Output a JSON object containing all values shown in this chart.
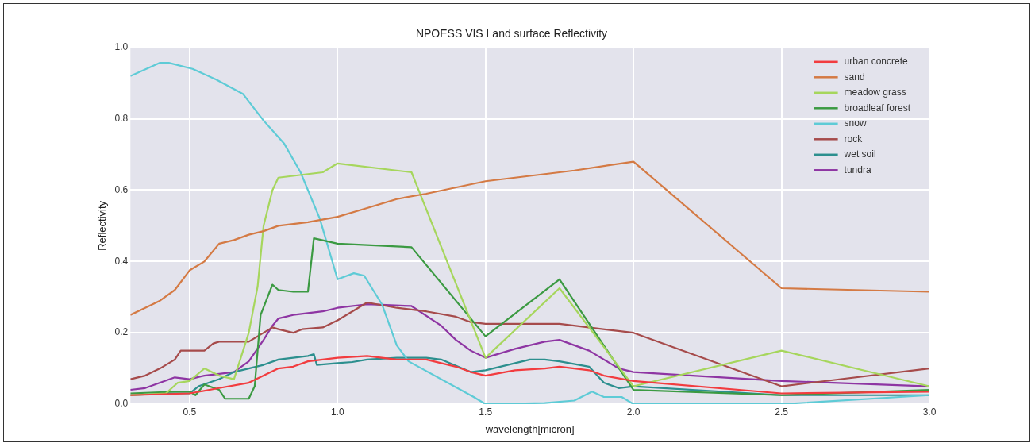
{
  "chart_data": {
    "type": "line",
    "title": "NPOESS VIS Land surface Reflectivity",
    "xlabel": "wavelength[micron]",
    "ylabel": "Reflectivity",
    "xlim": [
      0.3,
      3.0
    ],
    "xticks": [
      0.5,
      {
        "value": 1,
        "label": "1.0"
      },
      1.5,
      {
        "value": 2,
        "label": "2.0"
      },
      2.5,
      {
        "value": 3,
        "label": "3.0"
      }
    ],
    "ylim": [
      0,
      1
    ],
    "yticks": [
      {
        "value": 0,
        "label": "0.0"
      },
      0.2,
      0.4,
      0.6,
      0.8,
      {
        "value": 1,
        "label": "1.0"
      }
    ],
    "grid": true,
    "legend": "top right",
    "marker": "none",
    "line_style": "solid",
    "series": [
      {
        "name": "urban concrete",
        "color": "#f23c3f",
        "x": [
          0.3,
          0.5,
          0.6,
          0.7,
          0.75,
          0.8,
          0.85,
          0.9,
          0.95,
          1.0,
          1.1,
          1.2,
          1.3,
          1.4,
          1.45,
          1.5,
          1.6,
          1.7,
          1.75,
          1.85,
          1.9,
          2.0,
          2.5,
          3.0
        ],
        "values": [
          0.025,
          0.03,
          0.045,
          0.06,
          0.08,
          0.1,
          0.105,
          0.12,
          0.125,
          0.13,
          0.135,
          0.125,
          0.125,
          0.105,
          0.09,
          0.08,
          0.095,
          0.1,
          0.105,
          0.095,
          0.08,
          0.065,
          0.03,
          0.035
        ]
      },
      {
        "name": "sand",
        "color": "#d47a44",
        "x": [
          0.3,
          0.35,
          0.4,
          0.45,
          0.5,
          0.55,
          0.6,
          0.65,
          0.7,
          0.75,
          0.8,
          0.9,
          1.0,
          1.1,
          1.2,
          1.3,
          1.5,
          1.6,
          1.8,
          2.0,
          2.5,
          3.0
        ],
        "values": [
          0.25,
          0.27,
          0.29,
          0.32,
          0.375,
          0.4,
          0.45,
          0.46,
          0.475,
          0.485,
          0.5,
          0.51,
          0.525,
          0.55,
          0.575,
          0.59,
          0.625,
          0.635,
          0.655,
          0.68,
          0.325,
          0.315
        ]
      },
      {
        "name": "meadow grass",
        "color": "#a6d65c",
        "x": [
          0.3,
          0.42,
          0.46,
          0.5,
          0.55,
          0.6,
          0.65,
          0.7,
          0.73,
          0.75,
          0.78,
          0.8,
          0.85,
          0.95,
          1.0,
          1.25,
          1.5,
          1.75,
          2.0,
          2.5,
          3.0
        ],
        "values": [
          0.025,
          0.03,
          0.06,
          0.065,
          0.1,
          0.08,
          0.07,
          0.2,
          0.33,
          0.5,
          0.6,
          0.635,
          0.64,
          0.65,
          0.675,
          0.65,
          0.13,
          0.325,
          0.05,
          0.15,
          0.05
        ]
      },
      {
        "name": "broadleaf forest",
        "color": "#3b9a42",
        "x": [
          0.3,
          0.45,
          0.5,
          0.52,
          0.55,
          0.6,
          0.62,
          0.7,
          0.72,
          0.74,
          0.78,
          0.8,
          0.85,
          0.9,
          0.92,
          1.0,
          1.25,
          1.5,
          1.75,
          2.0,
          2.5,
          3.0
        ],
        "values": [
          0.03,
          0.035,
          0.035,
          0.025,
          0.055,
          0.04,
          0.015,
          0.015,
          0.05,
          0.25,
          0.335,
          0.32,
          0.315,
          0.315,
          0.465,
          0.45,
          0.44,
          0.19,
          0.35,
          0.04,
          0.025,
          0.04
        ]
      },
      {
        "name": "snow",
        "color": "#5ecbd6",
        "x": [
          0.3,
          0.4,
          0.43,
          0.51,
          0.59,
          0.68,
          0.75,
          0.82,
          0.875,
          0.94,
          1.0,
          1.055,
          1.09,
          1.15,
          1.2,
          1.24,
          1.46,
          1.5,
          1.7,
          1.8,
          1.86,
          1.9,
          1.96,
          2.0,
          2.5,
          3.0
        ],
        "values": [
          0.92,
          0.957,
          0.957,
          0.94,
          0.91,
          0.87,
          0.795,
          0.73,
          0.65,
          0.52,
          0.35,
          0.367,
          0.36,
          0.28,
          0.165,
          0.12,
          0.02,
          0.0,
          0.003,
          0.01,
          0.035,
          0.02,
          0.02,
          0.0,
          0.0,
          0.025
        ]
      },
      {
        "name": "rock",
        "color": "#a64b4b",
        "x": [
          0.3,
          0.35,
          0.4,
          0.45,
          0.47,
          0.5,
          0.55,
          0.58,
          0.6,
          0.7,
          0.75,
          0.78,
          0.8,
          0.85,
          0.88,
          0.95,
          1.0,
          1.05,
          1.1,
          1.2,
          1.3,
          1.4,
          1.45,
          1.5,
          1.75,
          2.0,
          2.5,
          3.0
        ],
        "values": [
          0.07,
          0.08,
          0.1,
          0.125,
          0.15,
          0.15,
          0.15,
          0.17,
          0.175,
          0.175,
          0.2,
          0.215,
          0.21,
          0.2,
          0.21,
          0.215,
          0.235,
          0.26,
          0.285,
          0.27,
          0.26,
          0.245,
          0.23,
          0.225,
          0.225,
          0.2,
          0.05,
          0.1
        ]
      },
      {
        "name": "wet soil",
        "color": "#2c8f8e",
        "x": [
          0.3,
          0.45,
          0.5,
          0.53,
          0.6,
          0.65,
          0.7,
          0.75,
          0.8,
          0.85,
          0.9,
          0.92,
          0.93,
          1.0,
          1.05,
          1.1,
          1.2,
          1.3,
          1.35,
          1.45,
          1.5,
          1.6,
          1.65,
          1.7,
          1.75,
          1.85,
          1.9,
          1.95,
          2.0,
          2.5,
          3.0
        ],
        "values": [
          0.025,
          0.03,
          0.03,
          0.05,
          0.07,
          0.09,
          0.1,
          0.11,
          0.125,
          0.13,
          0.135,
          0.14,
          0.11,
          0.115,
          0.118,
          0.125,
          0.13,
          0.13,
          0.125,
          0.09,
          0.095,
          0.115,
          0.125,
          0.125,
          0.12,
          0.105,
          0.06,
          0.045,
          0.05,
          0.025,
          0.025
        ]
      },
      {
        "name": "tundra",
        "color": "#8e35a3",
        "x": [
          0.3,
          0.35,
          0.4,
          0.45,
          0.5,
          0.55,
          0.6,
          0.65,
          0.7,
          0.75,
          0.78,
          0.8,
          0.85,
          0.9,
          0.95,
          1.0,
          1.1,
          1.25,
          1.35,
          1.4,
          1.45,
          1.5,
          1.6,
          1.7,
          1.75,
          1.85,
          1.95,
          2.0,
          2.5,
          3.0
        ],
        "values": [
          0.04,
          0.045,
          0.06,
          0.075,
          0.07,
          0.08,
          0.085,
          0.09,
          0.12,
          0.18,
          0.22,
          0.24,
          0.25,
          0.255,
          0.26,
          0.27,
          0.28,
          0.275,
          0.22,
          0.18,
          0.15,
          0.13,
          0.155,
          0.175,
          0.18,
          0.15,
          0.1,
          0.09,
          0.065,
          0.05
        ]
      }
    ]
  }
}
